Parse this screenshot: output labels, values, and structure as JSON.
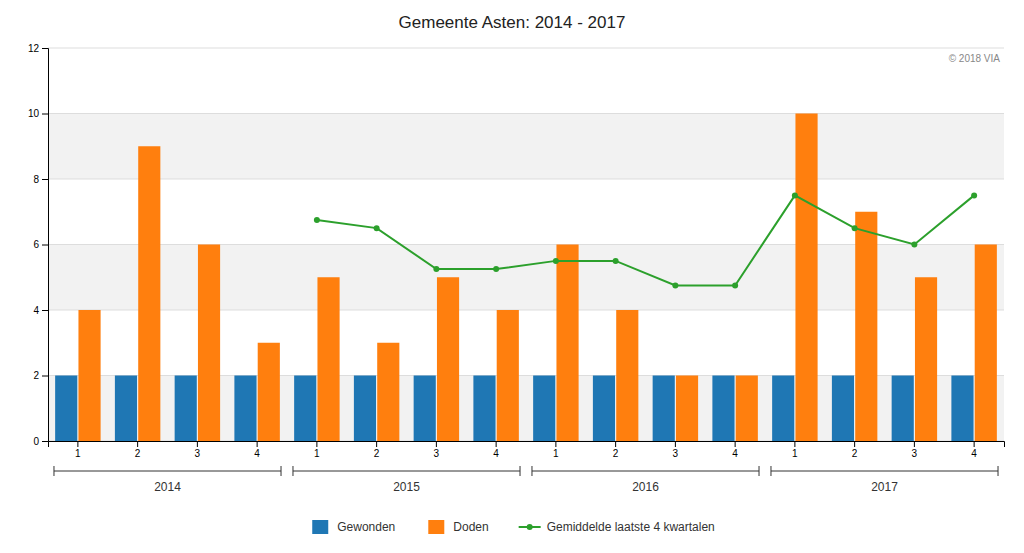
{
  "chart_data": {
    "type": "bar",
    "title": "Gemeente Asten: 2014 - 2017",
    "categories": [
      "1",
      "2",
      "3",
      "4",
      "1",
      "2",
      "3",
      "4",
      "1",
      "2",
      "3",
      "4",
      "1",
      "2",
      "3",
      "4"
    ],
    "category_groups": [
      "2014",
      "2014",
      "2014",
      "2014",
      "2015",
      "2015",
      "2015",
      "2015",
      "2016",
      "2016",
      "2016",
      "2016",
      "2017",
      "2017",
      "2017",
      "2017"
    ],
    "series": [
      {
        "name": "Gewonden",
        "type": "bar",
        "values": [
          2,
          2,
          2,
          2,
          2,
          2,
          2,
          2,
          2,
          2,
          2,
          2,
          2,
          2,
          2,
          2
        ]
      },
      {
        "name": "Doden",
        "type": "bar",
        "values": [
          4,
          9,
          6,
          3,
          5,
          3,
          5,
          4,
          6,
          4,
          2,
          2,
          10,
          7,
          5,
          6
        ]
      },
      {
        "name": "Gemiddelde laatste 4 kwartalen",
        "type": "line",
        "marker": "circle",
        "values": [
          null,
          null,
          null,
          null,
          6.75,
          6.5,
          5.25,
          5.25,
          5.5,
          5.5,
          4.75,
          4.75,
          7.5,
          6.5,
          6.0,
          7.5
        ]
      }
    ],
    "annotations": [
      {
        "text": "© 2018 VIA"
      }
    ],
    "ylim": [
      0,
      12
    ],
    "yticks": [
      0,
      2,
      4,
      6,
      8,
      10,
      12
    ],
    "grid": true,
    "legend": "bottom"
  }
}
